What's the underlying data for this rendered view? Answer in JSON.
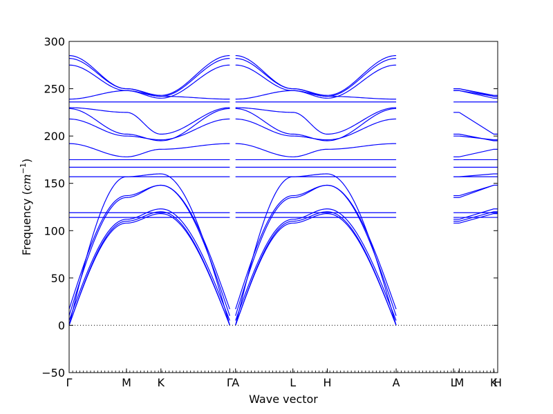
{
  "chart_data": {
    "type": "line",
    "title": "",
    "xlabel": "Wave vector",
    "ylabel": "Frequency (cm⁻¹)",
    "ylabel_prefix": "Frequency (",
    "ylabel_unit": "cm",
    "ylabel_exp": "−1",
    "ylabel_suffix": ")",
    "ylim": [
      -50,
      300
    ],
    "yticks": [
      -50,
      0,
      50,
      100,
      150,
      200,
      250,
      300
    ],
    "ytick_labels": [
      "−50",
      "0",
      "50",
      "100",
      "150",
      "200",
      "250",
      "300"
    ],
    "xlim": [
      0,
      7.47
    ],
    "high_symmetry_points": [
      {
        "label": "Γ",
        "x": 0.0
      },
      {
        "label": "M",
        "x": 1.0
      },
      {
        "label": "K",
        "x": 1.6
      },
      {
        "label": "Γ",
        "x": 2.8
      },
      {
        "label": "A",
        "x": 2.9
      },
      {
        "label": "L",
        "x": 3.9
      },
      {
        "label": "H",
        "x": 4.5
      },
      {
        "label": "A",
        "x": 5.7
      },
      {
        "label": "L",
        "x": 6.7
      },
      {
        "label": "M",
        "x": 6.8
      },
      {
        "label": "K",
        "x": 7.4
      },
      {
        "label": "H",
        "x": 7.47
      }
    ],
    "zero_line": {
      "y": 0,
      "style": "dotted",
      "color": "#000000"
    },
    "line_color": "#0000ff",
    "grid": false,
    "segment_note": "bands evaluated piecewise on segments Γ-M-K-Γ, A-L-H-A, L-M, K-H",
    "bands_gamma_M_K_Gamma": [
      {
        "name": "acoustic-1",
        "values_M": 108,
        "values_K": 118,
        "values_Gamma": 0
      },
      {
        "name": "acoustic-2",
        "values_M": 110,
        "values_K": 120,
        "values_Gamma": 0
      },
      {
        "name": "acoustic-3",
        "values_M": 112,
        "values_K": 123,
        "values_Gamma": 5
      },
      {
        "name": "optical-4",
        "values_M": 135,
        "values_K": 148,
        "values_Gamma": 10
      },
      {
        "name": "optical-5",
        "values_M": 137,
        "values_K": 148,
        "values_Gamma": 17
      },
      {
        "name": "optical-6",
        "values_M": 157,
        "values_K": 160,
        "values_Gamma": 0
      },
      {
        "name": "flat-114",
        "values_M": 114,
        "values_K": 114,
        "values_Gamma": 114
      },
      {
        "name": "flat-119",
        "values_M": 119,
        "values_K": 119,
        "values_Gamma": 119
      },
      {
        "name": "flat-157",
        "values_M": 157,
        "values_K": 157,
        "values_Gamma": 157
      },
      {
        "name": "flat-167",
        "values_M": 167,
        "values_K": 167,
        "values_Gamma": 167
      },
      {
        "name": "flat-175",
        "values_M": 175,
        "values_K": 175,
        "values_Gamma": 175
      },
      {
        "name": "optical-192",
        "values_M": 178,
        "values_K": 186,
        "values_Gamma": 192
      },
      {
        "name": "optical-218",
        "values_M": 200,
        "values_K": 196,
        "values_Gamma": 218
      },
      {
        "name": "optical-229",
        "values_M": 202,
        "values_K": 195,
        "values_Gamma": 229
      },
      {
        "name": "optical-230",
        "values_M": 225,
        "values_K": 202,
        "values_Gamma": 230
      },
      {
        "name": "flat-236",
        "values_M": 236,
        "values_K": 236,
        "values_Gamma": 236
      },
      {
        "name": "optical-239",
        "values_M": 248,
        "values_K": 242,
        "values_Gamma": 239
      },
      {
        "name": "optical-275",
        "values_M": 248,
        "values_K": 240,
        "values_Gamma": 275
      },
      {
        "name": "optical-282",
        "values_M": 250,
        "values_K": 242,
        "values_Gamma": 282
      },
      {
        "name": "optical-285",
        "values_M": 250,
        "values_K": 243,
        "values_Gamma": 285
      }
    ]
  }
}
